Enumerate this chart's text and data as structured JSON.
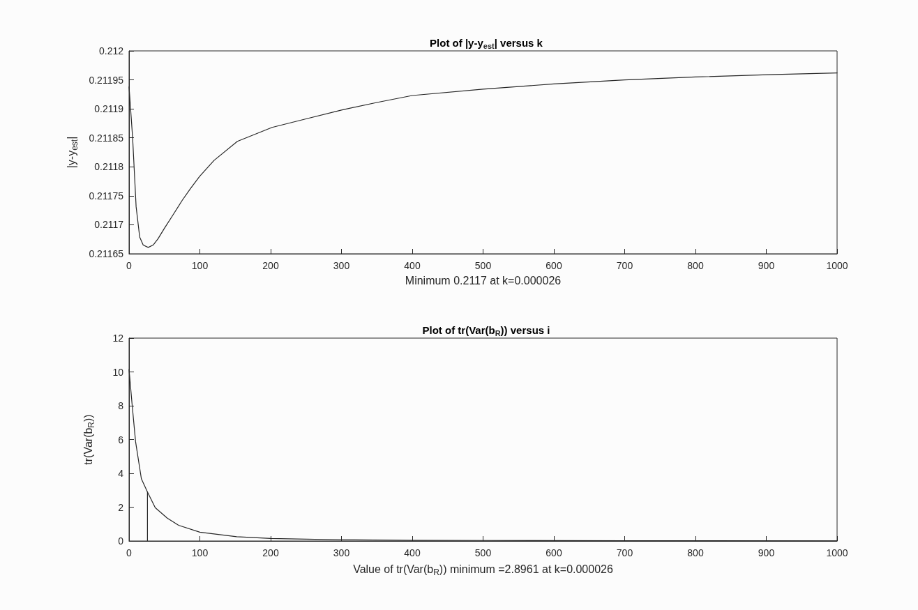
{
  "chart_data": [
    {
      "type": "line",
      "title": "Plot of |y-y$_{est}$| versus k",
      "xlabel": "Minimum 0.2117 at k=0.000026",
      "ylabel": "|y-y$_{est}$|",
      "grid": false,
      "xlim": [
        0,
        1000
      ],
      "xticks": [
        0,
        100,
        200,
        300,
        400,
        500,
        600,
        700,
        800,
        900,
        1000
      ],
      "ylim": [
        0.21165,
        0.212
      ],
      "yticks": [
        0.21165,
        0.2117,
        0.21175,
        0.2118,
        0.21185,
        0.2119,
        0.21195,
        0.212
      ],
      "series": [
        {
          "color": "#262626",
          "x": [
            0,
            5,
            10,
            15,
            20,
            27,
            34,
            41,
            50,
            61,
            75,
            87,
            100,
            120,
            153,
            202,
            251,
            300,
            350,
            400,
            500,
            600,
            700,
            800,
            903,
            1000
          ],
          "values": [
            0.211938,
            0.211851,
            0.211731,
            0.211679,
            0.211665,
            0.211661,
            0.211665,
            0.211676,
            0.211694,
            0.211715,
            0.211742,
            0.211763,
            0.211784,
            0.211811,
            0.211844,
            0.211868,
            0.211883,
            0.211898,
            0.211911,
            0.211923,
            0.211934,
            0.211943,
            0.21195,
            0.211955,
            0.211959,
            0.211962
          ]
        }
      ]
    },
    {
      "type": "line",
      "title": "Plot of tr(Var(b$_{R}$)) versus i",
      "xlabel": "Value of tr(Var(b$_{R}$)) minimum =2.8961 at k=0.000026",
      "ylabel": "tr(Var(b$_{R}$))",
      "grid": false,
      "xlim": [
        0,
        1000
      ],
      "xticks": [
        0,
        100,
        200,
        300,
        400,
        500,
        600,
        700,
        800,
        900,
        1000
      ],
      "ylim": [
        0,
        12
      ],
      "yticks": [
        0,
        2,
        4,
        6,
        8,
        10,
        12
      ],
      "series": [
        {
          "color": "#262626",
          "x": [
            0,
            4.3,
            9.2,
            17.4,
            26,
            37,
            54,
            70,
            100,
            152,
            200,
            300,
            400,
            500,
            700,
            1000
          ],
          "values": [
            10.14,
            8.08,
            5.88,
            3.68,
            2.9,
            1.97,
            1.35,
            0.93,
            0.52,
            0.25,
            0.15,
            0.07,
            0.04,
            0.03,
            0.02,
            0.01
          ]
        },
        {
          "color": "#262626",
          "x": [
            26,
            26
          ],
          "values": [
            0,
            2.9
          ]
        }
      ]
    }
  ]
}
